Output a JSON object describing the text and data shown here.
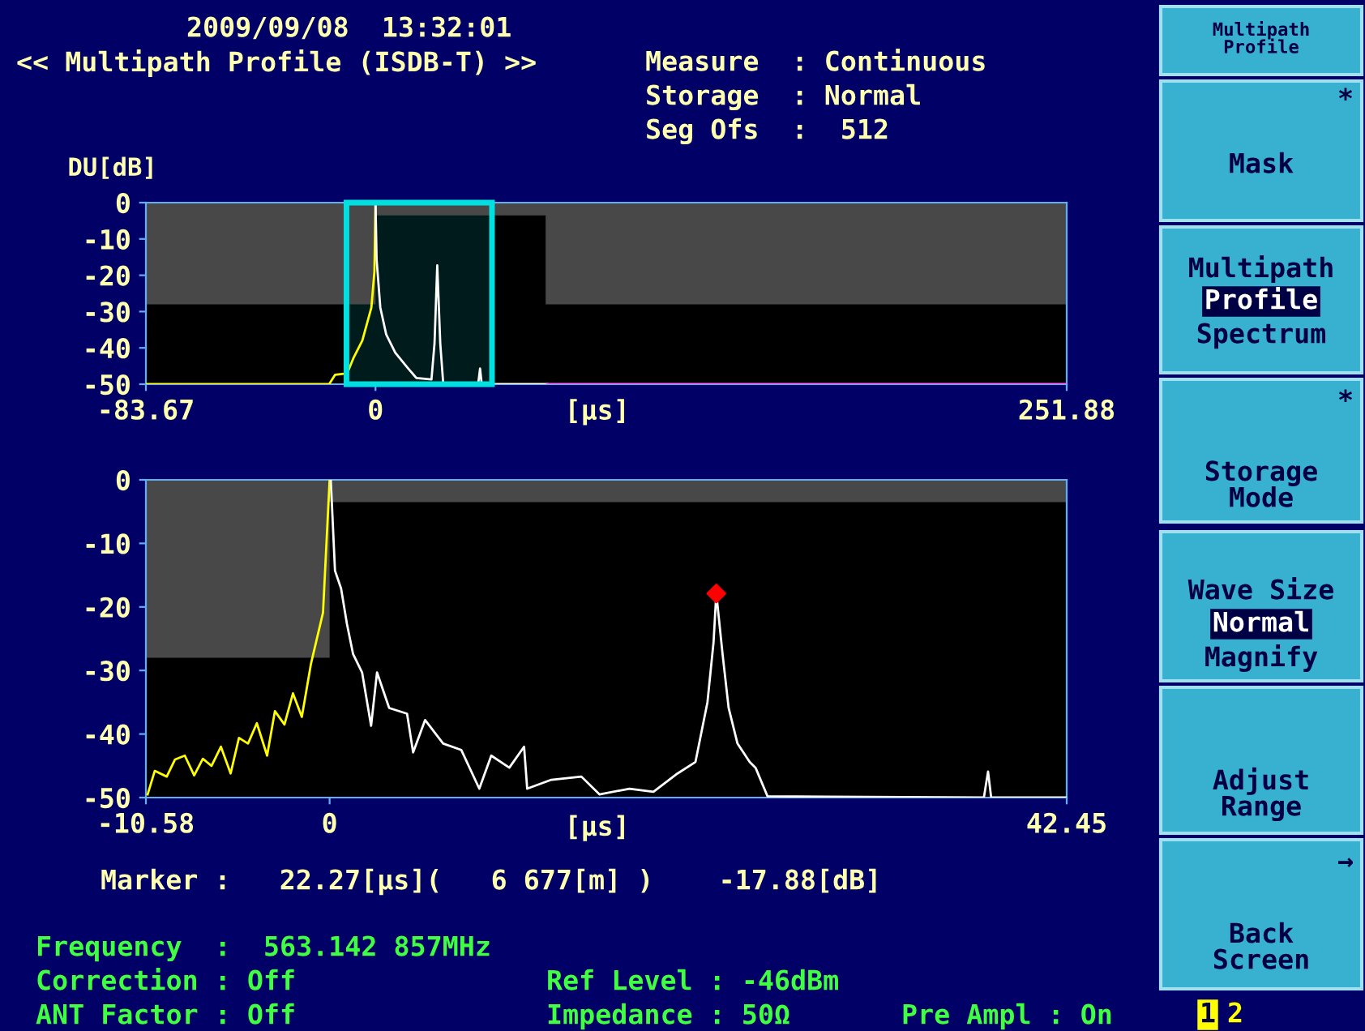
{
  "chart_data": [
    {
      "type": "line",
      "title": "<< Multipath Profile (ISDB-T) >>",
      "ylabel": "DU[dB]",
      "xlabel": "[μs]",
      "xlim": [
        -83.67,
        251.88
      ],
      "ylim": [
        -50,
        0
      ],
      "xticks": [
        -83.67,
        0,
        251.88
      ],
      "yticks": [
        0,
        -10,
        -20,
        -30,
        -40,
        -50
      ],
      "grid": false,
      "legend": false,
      "annotations": [
        "2009/09/08  13:32:01",
        "Measure  : Continuous",
        "Storage  : Normal",
        "Seg Ofs  :  512"
      ],
      "bands": [
        {
          "axis": "x",
          "from": -10.58,
          "to": 42.45,
          "color": "#00e0e0"
        }
      ],
      "series": [
        {
          "type": "area",
          "color": "#484848",
          "x": [
            -83.67,
            0,
            0,
            62,
            62,
            251.88
          ],
          "values": [
            -28,
            -28,
            -3.5,
            -3.5,
            -28,
            -28
          ]
        },
        {
          "color": "#ffff00",
          "x": [
            -83.67,
            -16.9,
            -14.7,
            -10.3,
            -8.1,
            -4.8,
            -1.5,
            -0.4,
            0
          ],
          "values": [
            -50,
            -50,
            -47.4,
            -47,
            -42.9,
            -38,
            -28.9,
            -19,
            0
          ]
        },
        {
          "color": "#ffffff",
          "x": [
            0,
            0.4,
            1.75,
            3.9,
            7.2,
            11.6,
            14.9,
            20.4,
            21.5,
            22.5,
            23.6,
            24.7,
            37.4,
            38.1,
            38.7,
            62.6
          ],
          "values": [
            0,
            -15.7,
            -28.9,
            -36.3,
            -41.3,
            -45.4,
            -48.3,
            -48.7,
            -38.8,
            -17.3,
            -38.8,
            -50,
            -50,
            -45.7,
            -50,
            -50
          ]
        },
        {
          "color": "#ff60ff",
          "x": [
            62.6,
            251.88
          ],
          "values": [
            -50,
            -50
          ]
        }
      ]
    },
    {
      "type": "line",
      "xlabel": "[μs]",
      "xlim": [
        -10.58,
        42.45
      ],
      "ylim": [
        -50,
        0
      ],
      "xticks": [
        -10.58,
        0,
        42.45
      ],
      "yticks": [
        0,
        -10,
        -20,
        -30,
        -40,
        -50
      ],
      "grid": false,
      "legend": false,
      "annotations": [
        "Marker :   22.27[μs](   6 677[m] )    -17.88[dB]",
        "Frequency  :  563.142 857MHz",
        "Correction : Off",
        "ANT Factor : Off",
        "Ref Level : -46dBm",
        "Impedance : 50Ω",
        "Pre Ampl : On",
        "Multipath\nProfile",
        "*",
        "Mask",
        "Multipath",
        "Profile",
        "Spectrum",
        "*",
        "Storage\nMode",
        "Wave Size",
        "Normal",
        "Magnify",
        "Adjust\nRange",
        "→",
        "Back\nScreen",
        "1",
        "2"
      ],
      "series": [
        {
          "type": "area",
          "color": "#484848",
          "x": [
            -10.58,
            0,
            0,
            42.45
          ],
          "values": [
            -28,
            -28,
            -3.5,
            -3.5
          ]
        },
        {
          "color": "#ffff00",
          "x": [
            -10.48,
            -10.07,
            -9.38,
            -8.9,
            -8.34,
            -7.8,
            -7.3,
            -6.8,
            -6.26,
            -5.7,
            -5.22,
            -4.7,
            -4.19,
            -3.6,
            -3.15,
            -2.6,
            -2.11,
            -1.6,
            -1.07,
            -0.38,
            0
          ],
          "values": [
            -49.5,
            -45.8,
            -46.7,
            -44,
            -43.4,
            -46.5,
            -43.9,
            -45,
            -42,
            -46.2,
            -40.6,
            -41.5,
            -38.3,
            -43.4,
            -36.4,
            -38.5,
            -33.6,
            -37.3,
            -28.9,
            -20.9,
            0
          ]
        },
        {
          "color": "#ffffff",
          "x": [
            0.07,
            0.31,
            0.66,
            1.0,
            1.35,
            1.87,
            2.39,
            2.73,
            3.43,
            4.46,
            4.81,
            5.5,
            6.54,
            7.58,
            8.62,
            9.31,
            10.35,
            11.2,
            11.38,
            12.77,
            14.5,
            15.54,
            17.27,
            18.65,
            20.04,
            21.07,
            21.76,
            22.11,
            22.27,
            22.63,
            22.98,
            23.49,
            24.19,
            24.53,
            25.22,
            37.68,
            37.92,
            38.1,
            42.45
          ],
          "values": [
            -0.2,
            -14.3,
            -17.1,
            -22.7,
            -27.4,
            -30.3,
            -38.7,
            -30.3,
            -35.9,
            -36.8,
            -42.9,
            -37.8,
            -41.5,
            -42.5,
            -48.6,
            -43.4,
            -45.3,
            -42,
            -48.6,
            -47.2,
            -46.7,
            -49.5,
            -48.6,
            -49.1,
            -46.2,
            -44.4,
            -35,
            -25.6,
            -17.88,
            -27.4,
            -35.9,
            -41.5,
            -44.4,
            -45.3,
            -49.8,
            -50,
            -45.9,
            -50,
            -50
          ]
        },
        {
          "type": "scatter",
          "color": "#ff0000",
          "marker": "diamond",
          "x": [
            22.27
          ],
          "values": [
            -17.88
          ]
        }
      ]
    }
  ]
}
